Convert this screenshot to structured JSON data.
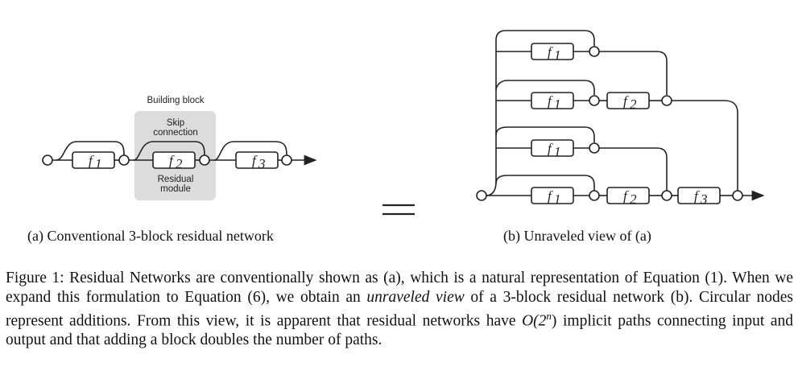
{
  "figure": {
    "panel_a": {
      "building_block_label": "Building block",
      "skip_connection_label_line1": "Skip",
      "skip_connection_label_line2": "connection",
      "residual_module_label_line1": "Residual",
      "residual_module_label_line2": "module",
      "blocks": [
        "f",
        "f",
        "f"
      ],
      "block_subscripts": [
        "1",
        "2",
        "3"
      ]
    },
    "panel_b": {
      "rows": [
        {
          "blocks": [
            "f1"
          ]
        },
        {
          "blocks": [
            "f1",
            "f2"
          ]
        },
        {
          "blocks": [
            "f1"
          ]
        },
        {
          "blocks": [
            "f1",
            "f2",
            "f3"
          ]
        }
      ]
    },
    "equals_sign": "=",
    "subcaption_a": "(a) Conventional 3-block residual network",
    "subcaption_b": "(b) Unraveled view of (a)"
  },
  "caption": {
    "part1": "Figure 1: Residual Networks are conventionally shown as (a), which is a natural representation of Equation (1). When we expand this formulation to Equation (6), we obtain an ",
    "emphasis": "unraveled view",
    "part2": " of a 3-block residual network (b). Circular nodes represent additions. From this view, it is apparent that residual networks have ",
    "math": "O(2",
    "math_sup": "n",
    "math_close": ")",
    "part3": " implicit paths connecting input and output and that adding a block doubles the number of paths."
  },
  "colors": {
    "building_block_fill": "#dcdcdc",
    "stroke": "#222222"
  }
}
